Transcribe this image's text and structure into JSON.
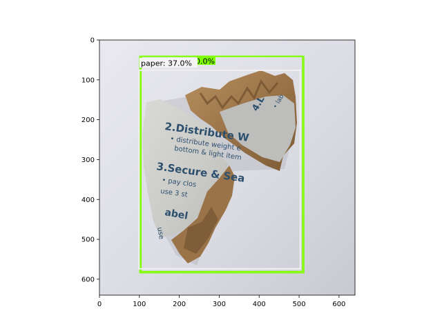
{
  "figure": {
    "axes": {
      "xlim": [
        0,
        640
      ],
      "ylim": [
        640,
        0
      ],
      "x_ticks": [
        0,
        100,
        200,
        300,
        400,
        500,
        600
      ],
      "y_ticks": [
        0,
        100,
        200,
        300,
        400,
        500,
        600
      ],
      "x_tick_labels": [
        "0",
        "100",
        "200",
        "300",
        "400",
        "500",
        "600"
      ],
      "y_tick_labels": [
        "0",
        "100",
        "200",
        "300",
        "400",
        "500",
        "600"
      ]
    },
    "photo": {
      "subject": "torn cardboard pieces with printed packing instructions on a light grey background",
      "printed_text": {
        "line1": "2.Distribute W",
        "line2": "• distribute weight e",
        "line3": "bottom & light item",
        "line4": "3.Secure & Sea",
        "line5": "• pay clos",
        "line6": "use 3 st",
        "line7": "abel",
        "line8": "use",
        "corner1": "4.L",
        "corner2": "• lab"
      }
    },
    "detections": [
      {
        "id": "cardboard",
        "label": "0.0%",
        "box_color": "#7FFF00",
        "box_data": {
          "x0": 104,
          "y0": 41,
          "x1": 509,
          "y1": 581
        },
        "box_data_outer": {
          "x0": 101,
          "y0": 41,
          "x1": 512,
          "y1": 584
        }
      },
      {
        "id": "paper",
        "label": "paper: 37.0%",
        "box_color": "#F0F0F0",
        "box_data": {
          "x0": 99,
          "y0": 76,
          "x1": 503,
          "y1": 574
        }
      }
    ]
  }
}
